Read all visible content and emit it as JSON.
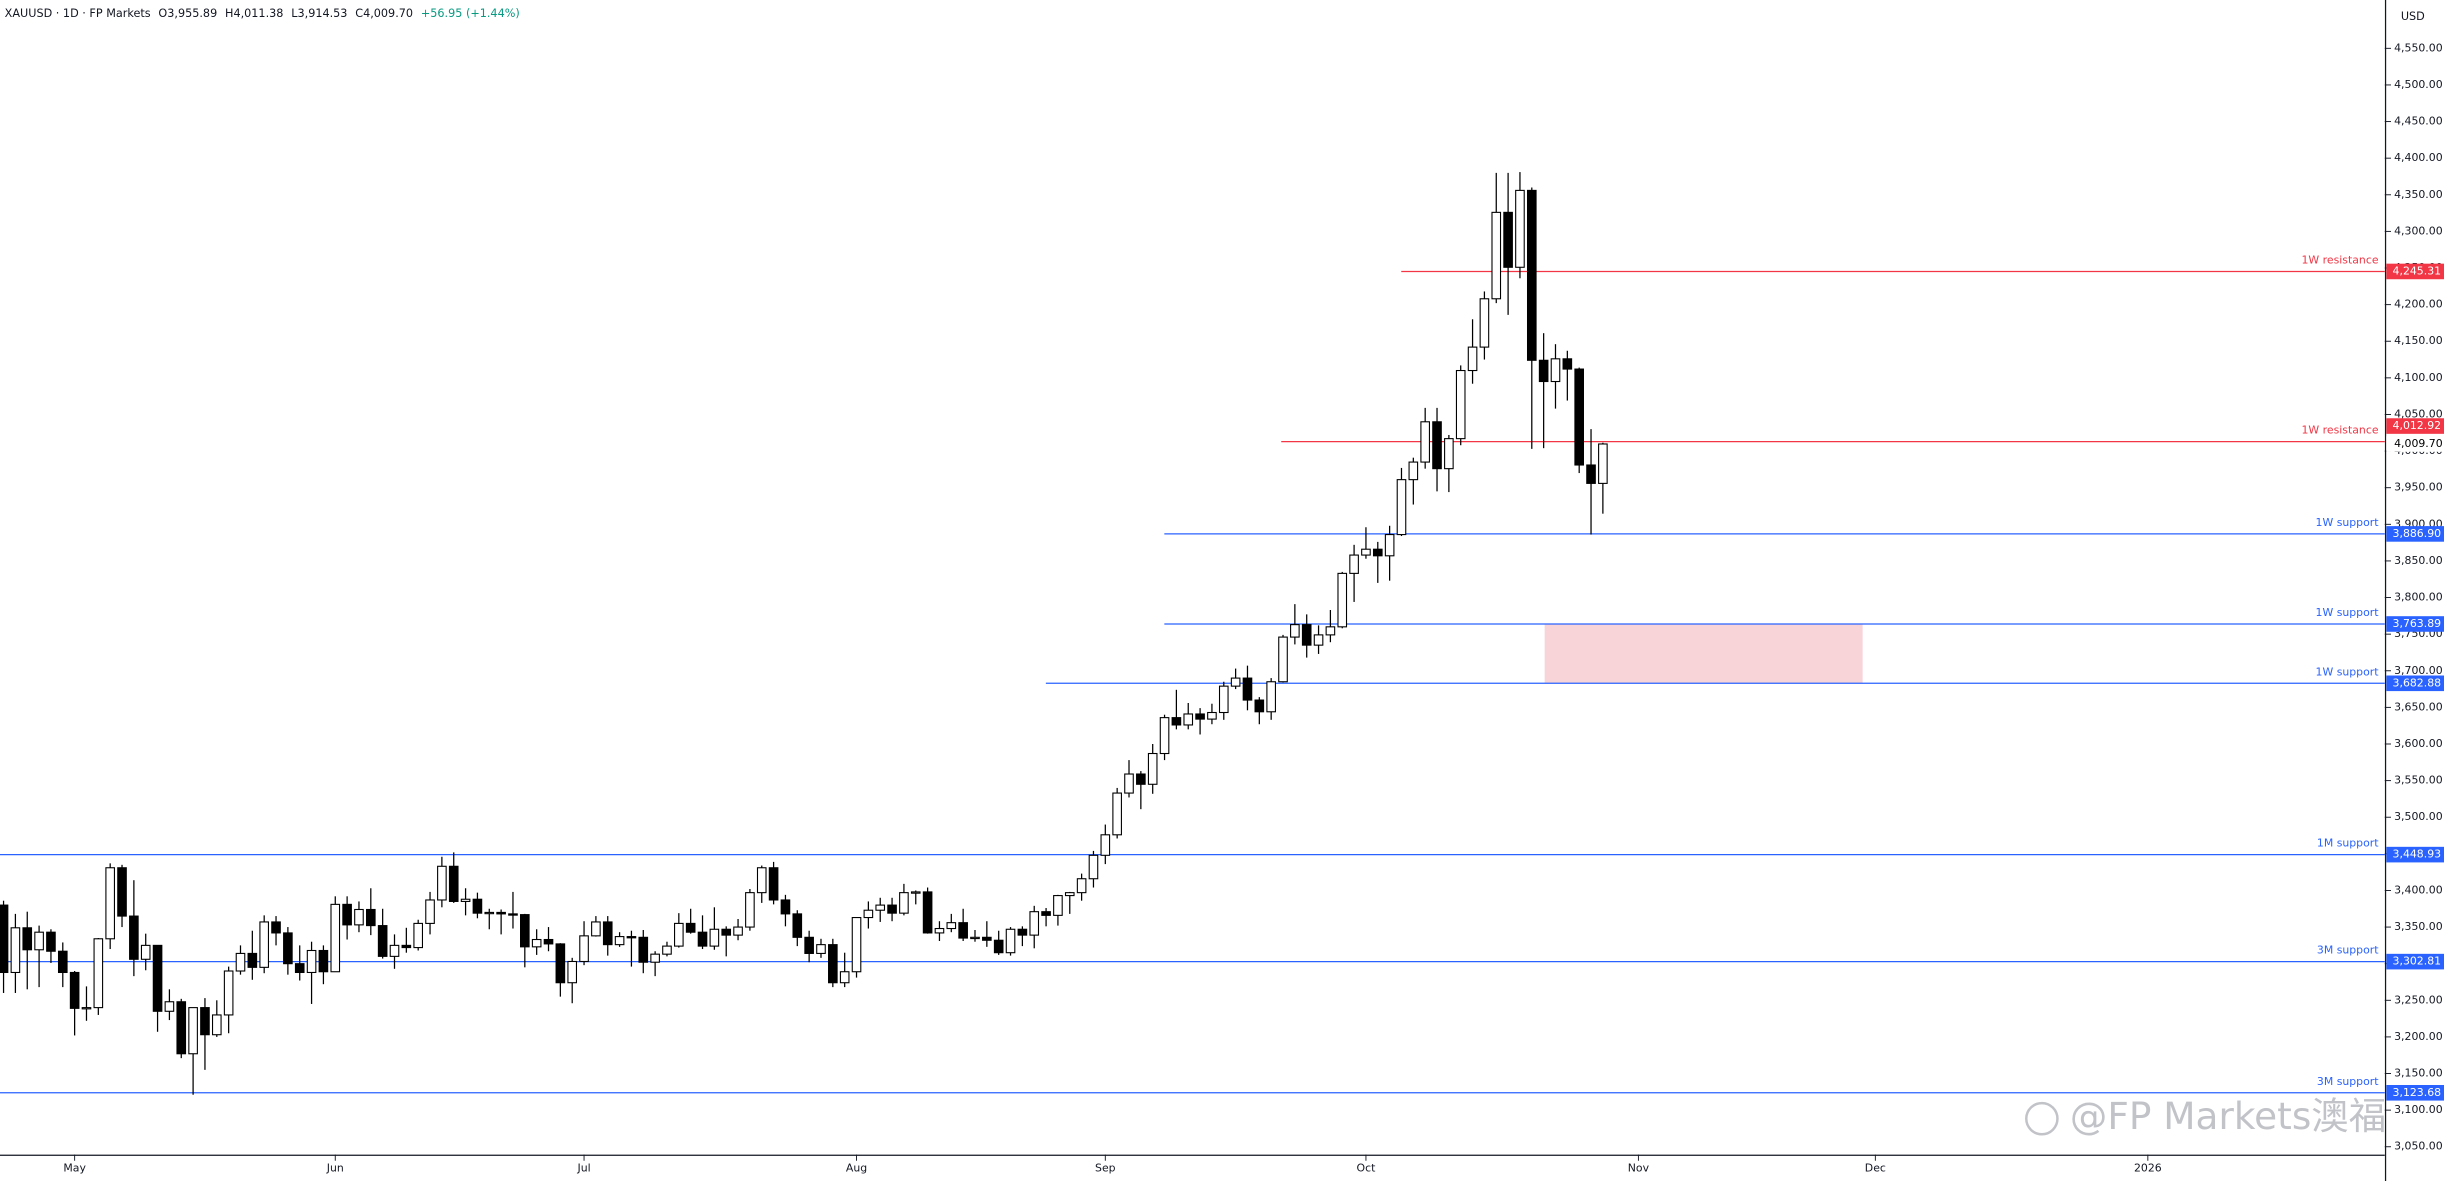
{
  "chart_data": {
    "type": "candlestick",
    "legend": {
      "symbol": "XAUUSD · 1D · FP Markets",
      "open": "O3,955.89",
      "high": "H4,011.38",
      "low": "L3,914.53",
      "close": "C4,009.70",
      "change": "+56.95 (+1.44%)"
    },
    "currency": "USD",
    "watermark": "@FP Markets澳福",
    "up_color": "#ffffff",
    "down_color": "#000000",
    "outline_color": "#000000",
    "xlim": [
      -0.3,
      201
    ],
    "xticks": [
      {
        "value": 6,
        "label": "May"
      },
      {
        "value": 28,
        "label": "Jun"
      },
      {
        "value": 49,
        "label": "Jul"
      },
      {
        "value": 72,
        "label": "Aug"
      },
      {
        "value": 93,
        "label": "Sep"
      },
      {
        "value": 115,
        "label": "Oct"
      },
      {
        "value": 138,
        "label": "Nov"
      },
      {
        "value": 158,
        "label": "Dec"
      },
      {
        "value": 181,
        "label": "2026"
      }
    ],
    "ylim": [
      3039.4,
      4616
    ],
    "yticks": [
      {
        "value": 3050,
        "label": "3,050.00"
      },
      {
        "value": 3100,
        "label": "3,100.00"
      },
      {
        "value": 3150,
        "label": "3,150.00"
      },
      {
        "value": 3200,
        "label": "3,200.00"
      },
      {
        "value": 3250,
        "label": "3,250.00"
      },
      {
        "value": 3300,
        "label": "3,300.00"
      },
      {
        "value": 3350,
        "label": "3,350.00"
      },
      {
        "value": 3400,
        "label": "3,400.00"
      },
      {
        "value": 3450,
        "label": "3,450.00"
      },
      {
        "value": 3500,
        "label": "3,500.00"
      },
      {
        "value": 3550,
        "label": "3,550.00"
      },
      {
        "value": 3600,
        "label": "3,600.00"
      },
      {
        "value": 3650,
        "label": "3,650.00"
      },
      {
        "value": 3700,
        "label": "3,700.00"
      },
      {
        "value": 3750,
        "label": "3,750.00"
      },
      {
        "value": 3800,
        "label": "3,800.00"
      },
      {
        "value": 3850,
        "label": "3,850.00"
      },
      {
        "value": 3900,
        "label": "3,900.00"
      },
      {
        "value": 3950,
        "label": "3,950.00"
      },
      {
        "value": 4000,
        "label": "4,000.00"
      },
      {
        "value": 4050,
        "label": "4,050.00"
      },
      {
        "value": 4100,
        "label": "4,100.00"
      },
      {
        "value": 4150,
        "label": "4,150.00"
      },
      {
        "value": 4200,
        "label": "4,200.00"
      },
      {
        "value": 4250,
        "label": "4,250.00"
      },
      {
        "value": 4300,
        "label": "4,300.00"
      },
      {
        "value": 4350,
        "label": "4,350.00"
      },
      {
        "value": 4400,
        "label": "4,400.00"
      },
      {
        "value": 4450,
        "label": "4,450.00"
      },
      {
        "value": 4500,
        "label": "4,500.00"
      },
      {
        "value": 4550,
        "label": "4,550.00"
      }
    ],
    "last_price": {
      "value": 4009.7,
      "label": "4,009.70",
      "color": "#000000"
    },
    "levels": [
      {
        "name": "1W resistance",
        "value": 4245.31,
        "label": "4,245.31",
        "color": "#f23645"
      },
      {
        "name": "1W resistance",
        "value": 4012.92,
        "label": "4,012.92",
        "color": "#f23645"
      },
      {
        "name": "1W support",
        "value": 3886.9,
        "label": "3,886.90",
        "color": "#2962ff"
      },
      {
        "name": "1W support",
        "value": 3763.89,
        "label": "3,763.89",
        "color": "#2962ff"
      },
      {
        "name": "1W support",
        "value": 3682.88,
        "label": "3,682.88",
        "color": "#2962ff"
      },
      {
        "name": "1M support",
        "value": 3448.93,
        "label": "3,448.93",
        "color": "#2962ff"
      },
      {
        "name": "3M support",
        "value": 3302.81,
        "label": "3,302.81",
        "color": "#2962ff"
      },
      {
        "name": "3M support",
        "value": 3123.68,
        "label": "3,123.68",
        "color": "#2962ff"
      }
    ],
    "zone_color": "#f8d4d8",
    "candles": [
      [
        3380,
        3386,
        3260,
        3288
      ],
      [
        3288,
        3368,
        3260,
        3349
      ],
      [
        3349,
        3371,
        3265,
        3319
      ],
      [
        3319,
        3352,
        3268,
        3343
      ],
      [
        3343,
        3347,
        3301,
        3317
      ],
      [
        3317,
        3329,
        3268,
        3288
      ],
      [
        3288,
        3290,
        3202,
        3239
      ],
      [
        3239,
        3269,
        3222,
        3240
      ],
      [
        3240,
        3335,
        3230,
        3334
      ],
      [
        3334,
        3437,
        3320,
        3431
      ],
      [
        3431,
        3435,
        3350,
        3365
      ],
      [
        3365,
        3414,
        3283,
        3306
      ],
      [
        3306,
        3341,
        3291,
        3325
      ],
      [
        3325,
        3325,
        3207,
        3235
      ],
      [
        3235,
        3265,
        3223,
        3248
      ],
      [
        3248,
        3252,
        3171,
        3177
      ],
      [
        3177,
        3240,
        3121,
        3240
      ],
      [
        3240,
        3253,
        3155,
        3203
      ],
      [
        3203,
        3250,
        3200,
        3230
      ],
      [
        3230,
        3296,
        3205,
        3290
      ],
      [
        3290,
        3325,
        3285,
        3314
      ],
      [
        3314,
        3345,
        3278,
        3295
      ],
      [
        3295,
        3366,
        3287,
        3357
      ],
      [
        3357,
        3365,
        3325,
        3342
      ],
      [
        3342,
        3350,
        3285,
        3300
      ],
      [
        3300,
        3325,
        3277,
        3288
      ],
      [
        3288,
        3330,
        3245,
        3318
      ],
      [
        3318,
        3325,
        3272,
        3289
      ],
      [
        3289,
        3392,
        3289,
        3381
      ],
      [
        3381,
        3392,
        3333,
        3353
      ],
      [
        3353,
        3385,
        3343,
        3374
      ],
      [
        3374,
        3403,
        3339,
        3352
      ],
      [
        3352,
        3375,
        3307,
        3310
      ],
      [
        3310,
        3340,
        3293,
        3325
      ],
      [
        3325,
        3349,
        3315,
        3322
      ],
      [
        3322,
        3360,
        3318,
        3355
      ],
      [
        3355,
        3398,
        3340,
        3387
      ],
      [
        3387,
        3446,
        3377,
        3433
      ],
      [
        3433,
        3452,
        3383,
        3385
      ],
      [
        3385,
        3403,
        3366,
        3388
      ],
      [
        3388,
        3397,
        3362,
        3369
      ],
      [
        3369,
        3375,
        3347,
        3370
      ],
      [
        3370,
        3374,
        3340,
        3368
      ],
      [
        3368,
        3398,
        3348,
        3367
      ],
      [
        3367,
        3368,
        3295,
        3323
      ],
      [
        3323,
        3347,
        3312,
        3333
      ],
      [
        3333,
        3350,
        3317,
        3327
      ],
      [
        3327,
        3328,
        3255,
        3274
      ],
      [
        3274,
        3308,
        3246,
        3303
      ],
      [
        3303,
        3358,
        3298,
        3338
      ],
      [
        3338,
        3365,
        3337,
        3357
      ],
      [
        3357,
        3365,
        3311,
        3326
      ],
      [
        3326,
        3343,
        3323,
        3337
      ],
      [
        3337,
        3345,
        3296,
        3336
      ],
      [
        3336,
        3346,
        3287,
        3302
      ],
      [
        3302,
        3317,
        3283,
        3313
      ],
      [
        3313,
        3330,
        3310,
        3324
      ],
      [
        3324,
        3369,
        3322,
        3355
      ],
      [
        3355,
        3375,
        3341,
        3343
      ],
      [
        3343,
        3366,
        3320,
        3324
      ],
      [
        3324,
        3377,
        3319,
        3347
      ],
      [
        3347,
        3351,
        3310,
        3339
      ],
      [
        3339,
        3361,
        3332,
        3350
      ],
      [
        3350,
        3402,
        3345,
        3397
      ],
      [
        3397,
        3434,
        3383,
        3431
      ],
      [
        3431,
        3439,
        3381,
        3387
      ],
      [
        3387,
        3394,
        3351,
        3368
      ],
      [
        3368,
        3373,
        3324,
        3336
      ],
      [
        3336,
        3345,
        3302,
        3314
      ],
      [
        3314,
        3334,
        3308,
        3326
      ],
      [
        3326,
        3334,
        3268,
        3274
      ],
      [
        3274,
        3315,
        3268,
        3289
      ],
      [
        3289,
        3363,
        3281,
        3363
      ],
      [
        3363,
        3385,
        3348,
        3373
      ],
      [
        3373,
        3390,
        3357,
        3380
      ],
      [
        3380,
        3390,
        3358,
        3369
      ],
      [
        3369,
        3409,
        3366,
        3397
      ],
      [
        3397,
        3400,
        3381,
        3398
      ],
      [
        3398,
        3404,
        3341,
        3342
      ],
      [
        3342,
        3358,
        3331,
        3348
      ],
      [
        3348,
        3368,
        3343,
        3356
      ],
      [
        3356,
        3375,
        3331,
        3335
      ],
      [
        3335,
        3346,
        3330,
        3336
      ],
      [
        3336,
        3358,
        3323,
        3332
      ],
      [
        3332,
        3345,
        3312,
        3315
      ],
      [
        3315,
        3350,
        3311,
        3347
      ],
      [
        3347,
        3351,
        3324,
        3339
      ],
      [
        3339,
        3379,
        3321,
        3371
      ],
      [
        3371,
        3376,
        3351,
        3366
      ],
      [
        3366,
        3394,
        3352,
        3393
      ],
      [
        3393,
        3398,
        3368,
        3397
      ],
      [
        3397,
        3423,
        3386,
        3416
      ],
      [
        3416,
        3454,
        3404,
        3448
      ],
      [
        3448,
        3490,
        3436,
        3476
      ],
      [
        3476,
        3540,
        3471,
        3533
      ],
      [
        3533,
        3578,
        3527,
        3559
      ],
      [
        3559,
        3563,
        3511,
        3545
      ],
      [
        3545,
        3600,
        3532,
        3587
      ],
      [
        3587,
        3640,
        3578,
        3636
      ],
      [
        3636,
        3674,
        3620,
        3626
      ],
      [
        3626,
        3656,
        3620,
        3641
      ],
      [
        3641,
        3649,
        3613,
        3634
      ],
      [
        3634,
        3655,
        3627,
        3643
      ],
      [
        3643,
        3685,
        3633,
        3679
      ],
      [
        3679,
        3703,
        3675,
        3690
      ],
      [
        3690,
        3707,
        3646,
        3660
      ],
      [
        3660,
        3664,
        3627,
        3644
      ],
      [
        3644,
        3690,
        3633,
        3685
      ],
      [
        3685,
        3749,
        3684,
        3746
      ],
      [
        3746,
        3791,
        3736,
        3763
      ],
      [
        3763,
        3777,
        3718,
        3735
      ],
      [
        3735,
        3762,
        3723,
        3749
      ],
      [
        3749,
        3783,
        3739,
        3760
      ],
      [
        3760,
        3835,
        3758,
        3833
      ],
      [
        3833,
        3872,
        3794,
        3858
      ],
      [
        3858,
        3896,
        3853,
        3866
      ],
      [
        3866,
        3876,
        3820,
        3857
      ],
      [
        3857,
        3898,
        3823,
        3886
      ],
      [
        3886,
        3977,
        3884,
        3961
      ],
      [
        3961,
        3991,
        3927,
        3985
      ],
      [
        3985,
        4059,
        3976,
        4040
      ],
      [
        4040,
        4059,
        3945,
        3976
      ],
      [
        3976,
        4022,
        3944,
        4017
      ],
      [
        4017,
        4117,
        4008,
        4110
      ],
      [
        4110,
        4180,
        4092,
        4142
      ],
      [
        4142,
        4218,
        4125,
        4208
      ],
      [
        4208,
        4380,
        4202,
        4326
      ],
      [
        4326,
        4380,
        4186,
        4251
      ],
      [
        4251,
        4381,
        4236,
        4356
      ],
      [
        4356,
        4360,
        4003,
        4124
      ],
      [
        4124,
        4161,
        4004,
        4095
      ],
      [
        4095,
        4146,
        4058,
        4126
      ],
      [
        4126,
        4137,
        4069,
        4112
      ],
      [
        4112,
        4114,
        3970,
        3981
      ],
      [
        3981,
        4030,
        3886,
        3955.89
      ],
      [
        3955.89,
        4011.38,
        3914.53,
        4009.7
      ]
    ]
  }
}
